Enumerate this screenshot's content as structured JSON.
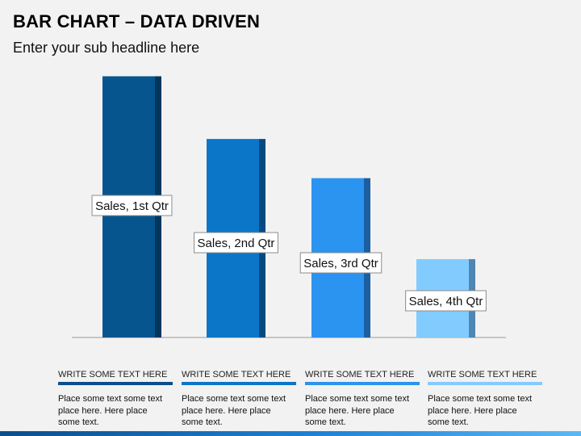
{
  "header": {
    "title": "BAR CHART – DATA DRIVEN",
    "subtitle": "Enter your sub headline here"
  },
  "chart_data": {
    "type": "bar",
    "categories": [
      "Sales, 1st Qtr",
      "Sales, 2nd Qtr",
      "Sales, 3rd Qtr",
      "Sales, 4th Qtr"
    ],
    "values": [
      10.0,
      7.6,
      6.1,
      3.0
    ],
    "ylim": [
      0,
      10.2
    ],
    "grid": false,
    "legend": "none",
    "bar_colors": [
      "#06558f",
      "#0b76c8",
      "#2b93f0",
      "#82cbff"
    ],
    "side_colors": [
      "#04365d",
      "#064a81",
      "#1c5fa0",
      "#4f86b3"
    ],
    "axis_color": "#9a9a9a"
  },
  "columns": [
    {
      "title": "WRITE SOME TEXT HERE",
      "lines": [
        "Place some text some text",
        "place here. Here place",
        "some text."
      ],
      "color": "#0a4e8c"
    },
    {
      "title": "WRITE SOME TEXT HERE",
      "lines": [
        "Place some text some text",
        "place here. Here place",
        "some text."
      ],
      "color": "#0b76c8"
    },
    {
      "title": "WRITE SOME TEXT HERE",
      "lines": [
        "Place some text some text",
        "place here. Here place",
        "some text."
      ],
      "color": "#2b93f0"
    },
    {
      "title": "WRITE SOME TEXT HERE",
      "lines": [
        "Place some text some text",
        "place here. Here place",
        "some text."
      ],
      "color": "#82cbff"
    }
  ]
}
